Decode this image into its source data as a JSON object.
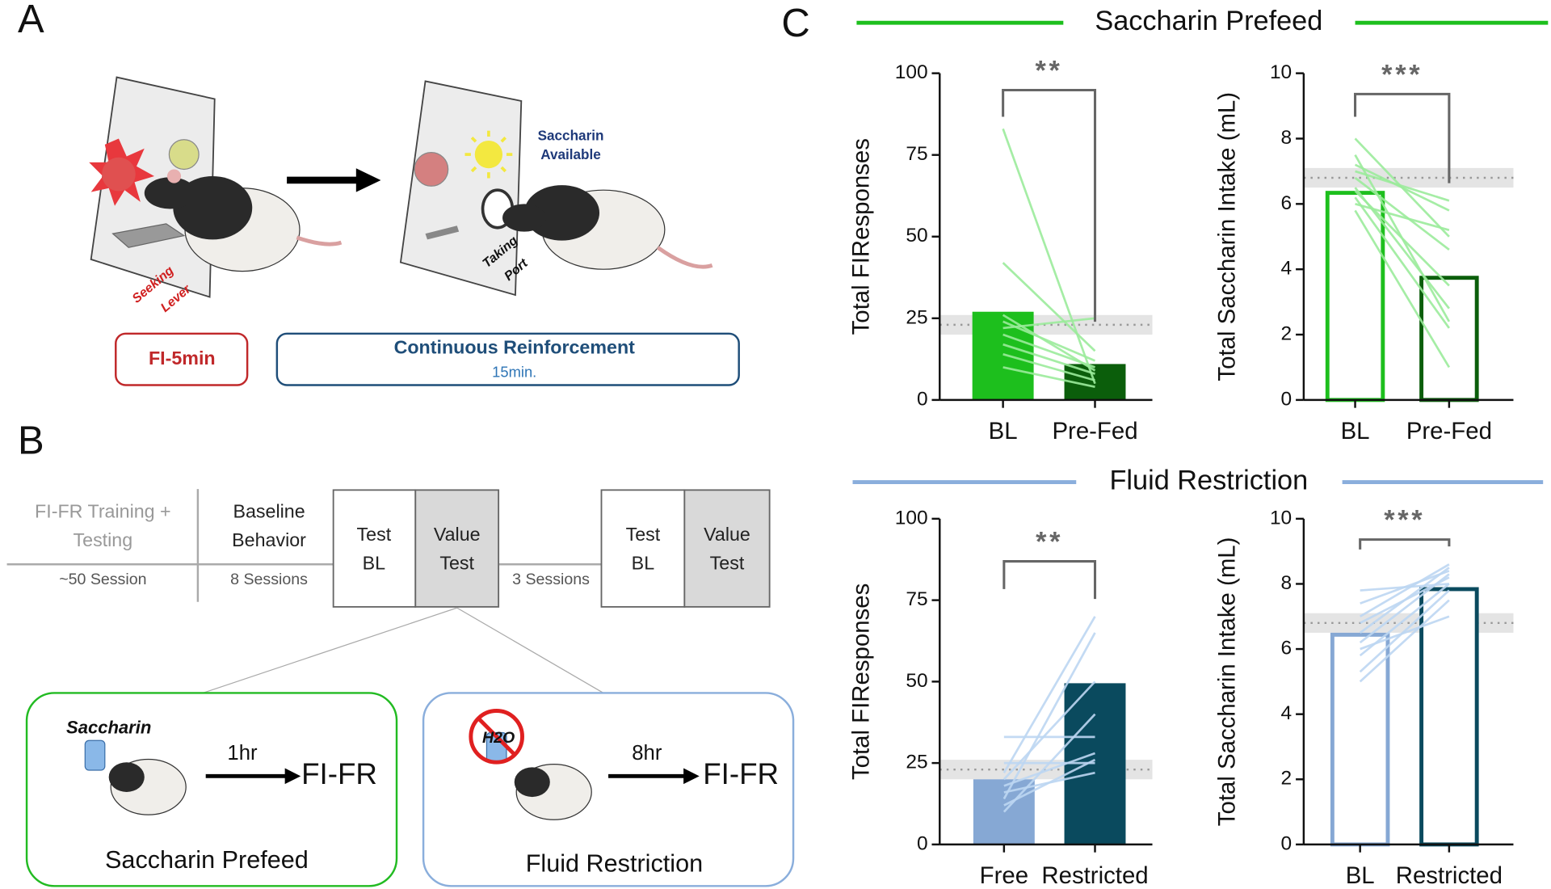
{
  "panel_labels": [
    "A",
    "B",
    "C"
  ],
  "panel_a": {
    "saccharin_available": [
      "Saccharin",
      "Available"
    ],
    "seeking_lever": [
      "Seeking",
      "Lever"
    ],
    "taking_port": [
      "Taking",
      "Port"
    ],
    "fi_box": "FI-5min",
    "cr_box": {
      "title": "Continuous Reinforcement",
      "duration": "15min."
    }
  },
  "panel_b": {
    "training": [
      "FI-FR Training +",
      "Testing"
    ],
    "training_sessions": "~50 Session",
    "baseline": [
      "Baseline",
      "Behavior"
    ],
    "baseline_sessions": "8 Sessions",
    "test_bl_1": [
      "Test",
      "BL"
    ],
    "value_test_1": [
      "Value",
      "Test"
    ],
    "gap_sessions": "3 Sessions",
    "test_bl_2": [
      "Test",
      "BL"
    ],
    "value_test_2": [
      "Value",
      "Test"
    ],
    "prefeed_box": {
      "bottle": "Saccharin",
      "delay": "1hr",
      "outcome": "FI-FR",
      "title": "Saccharin Prefeed"
    },
    "restriction_box": {
      "bottle": "H2O",
      "delay": "8hr",
      "outcome": "FI-FR",
      "title": "Fluid Restriction"
    }
  },
  "panel_c": {
    "headings": [
      {
        "text": "Saccharin Prefeed",
        "color": "#1dbf1d"
      },
      {
        "text": "Fluid Restriction",
        "color": "#8aaedc"
      }
    ]
  },
  "chart_data": [
    {
      "type": "bar",
      "y_label": "Total FIResponses",
      "categories": [
        "BL",
        "Pre-Fed"
      ],
      "values": [
        27,
        11
      ],
      "colors": [
        "#1dbf1d",
        "#0b5e0b"
      ],
      "bar_style": "solid",
      "line_color": "#9beb9b",
      "ylim": [
        0,
        100
      ],
      "yticks": [
        0,
        25,
        50,
        75,
        100
      ],
      "annotation": "**",
      "reference_line": 23,
      "reference_band": [
        20,
        26
      ],
      "subjects": [
        [
          83,
          5
        ],
        [
          42,
          15
        ],
        [
          26,
          9
        ],
        [
          22,
          25
        ],
        [
          20,
          10
        ],
        [
          17,
          8
        ],
        [
          14,
          6
        ],
        [
          10,
          4
        ],
        [
          24,
          12
        ]
      ]
    },
    {
      "type": "bar",
      "y_label": "Total Saccharin Intake (mL)",
      "categories": [
        "BL",
        "Pre-Fed"
      ],
      "values": [
        6.4,
        3.8
      ],
      "colors": [
        "#1dbf1d",
        "#0b5e0b"
      ],
      "bar_style": "outline",
      "line_color": "#9beb9b",
      "ylim": [
        0,
        10
      ],
      "yticks": [
        0,
        2,
        4,
        6,
        8,
        10
      ],
      "annotation": "***",
      "reference_line": 6.8,
      "reference_band": [
        6.5,
        7.1
      ],
      "subjects": [
        [
          8.0,
          5.0
        ],
        [
          7.2,
          5.8
        ],
        [
          7.0,
          6.1
        ],
        [
          6.8,
          4.6
        ],
        [
          6.5,
          2.8
        ],
        [
          6.2,
          2.2
        ],
        [
          5.8,
          1.0
        ],
        [
          6.4,
          3.5
        ],
        [
          6.0,
          5.2
        ],
        [
          7.5,
          2.4
        ]
      ]
    },
    {
      "type": "bar",
      "y_label": "Total FIResponses",
      "categories": [
        "Free",
        "Restricted"
      ],
      "values": [
        20,
        49.5
      ],
      "colors": [
        "#86a8d4",
        "#0a4a5e"
      ],
      "bar_style": "solid",
      "line_color": "#bcd6f2",
      "ylim": [
        0,
        100
      ],
      "yticks": [
        0,
        25,
        50,
        75,
        100
      ],
      "annotation": "**",
      "reference_line": 23,
      "reference_band": [
        20,
        26
      ],
      "subjects": [
        [
          22,
          70
        ],
        [
          14,
          65
        ],
        [
          33,
          33
        ],
        [
          10,
          40
        ],
        [
          18,
          28
        ],
        [
          25,
          25
        ],
        [
          16,
          22
        ],
        [
          20,
          50
        ],
        [
          12,
          26
        ]
      ]
    },
    {
      "type": "bar",
      "y_label": "Total Saccharin Intake (mL)",
      "categories": [
        "BL",
        "Restricted"
      ],
      "values": [
        6.5,
        7.9
      ],
      "colors": [
        "#86a8d4",
        "#0a4a5e"
      ],
      "bar_style": "outline",
      "line_color": "#bcd6f2",
      "ylim": [
        0,
        10
      ],
      "yticks": [
        0,
        2,
        4,
        6,
        8,
        10
      ],
      "annotation": "***",
      "reference_line": 6.8,
      "reference_band": [
        6.5,
        7.1
      ],
      "subjects": [
        [
          5.0,
          7.5
        ],
        [
          5.3,
          7.8
        ],
        [
          5.8,
          8.0
        ],
        [
          6.2,
          8.3
        ],
        [
          6.5,
          8.5
        ],
        [
          6.8,
          8.2
        ],
        [
          7.0,
          8.6
        ],
        [
          7.4,
          8.4
        ],
        [
          7.8,
          8.0
        ],
        [
          6.0,
          7.0
        ]
      ]
    }
  ]
}
